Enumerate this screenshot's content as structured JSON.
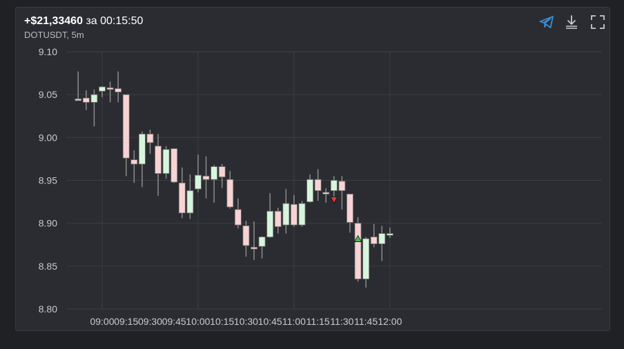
{
  "header": {
    "pnl": "+$21,33460",
    "duration_prefix": "за",
    "duration": "00:15:50",
    "symbol_timeframe": "DOTUSDT, 5m"
  },
  "toolbar": {
    "icons": [
      "telegram-icon",
      "download-icon",
      "fullscreen-icon"
    ],
    "accent": "#3a8fd6"
  },
  "chart_data": {
    "type": "candlestick",
    "symbol": "DOTUSDT",
    "interval": "5m",
    "ylim": [
      8.8,
      9.1
    ],
    "yticks": [
      "9.10",
      "9.05",
      "9.00",
      "8.95",
      "8.90",
      "8.85",
      "8.80"
    ],
    "xticks": [
      "09:00",
      "09:15",
      "09:30",
      "09:45",
      "10:00",
      "10:15",
      "10:30",
      "10:45",
      "11:00",
      "11:15",
      "11:30",
      "11:45",
      "12:00"
    ],
    "grid": true,
    "colors": {
      "up": "#d7f5dc",
      "down": "#f8d3d3",
      "wick": "#8c8c8c",
      "grid": "#3c3e44"
    },
    "candles": [
      {
        "t": "08:45",
        "o": 9.045,
        "h": 9.077,
        "l": 9.043,
        "c": 9.044
      },
      {
        "t": "08:50",
        "o": 9.046,
        "h": 9.055,
        "l": 9.032,
        "c": 9.041
      },
      {
        "t": "08:55",
        "o": 9.041,
        "h": 9.056,
        "l": 9.013,
        "c": 9.05
      },
      {
        "t": "09:00",
        "o": 9.054,
        "h": 9.06,
        "l": 9.047,
        "c": 9.059
      },
      {
        "t": "09:05",
        "o": 9.058,
        "h": 9.065,
        "l": 9.041,
        "c": 9.056
      },
      {
        "t": "09:10",
        "o": 9.057,
        "h": 9.077,
        "l": 9.041,
        "c": 9.053
      },
      {
        "t": "09:15",
        "o": 9.05,
        "h": 9.05,
        "l": 8.955,
        "c": 8.976
      },
      {
        "t": "09:20",
        "o": 8.974,
        "h": 8.985,
        "l": 8.947,
        "c": 8.969
      },
      {
        "t": "09:25",
        "o": 8.969,
        "h": 9.007,
        "l": 8.942,
        "c": 9.004
      },
      {
        "t": "09:30",
        "o": 9.004,
        "h": 9.009,
        "l": 8.981,
        "c": 8.994
      },
      {
        "t": "09:35",
        "o": 8.99,
        "h": 9.004,
        "l": 8.932,
        "c": 8.958
      },
      {
        "t": "09:40",
        "o": 8.958,
        "h": 8.99,
        "l": 8.952,
        "c": 8.986
      },
      {
        "t": "09:45",
        "o": 8.987,
        "h": 8.987,
        "l": 8.947,
        "c": 8.948
      },
      {
        "t": "09:50",
        "o": 8.947,
        "h": 8.965,
        "l": 8.906,
        "c": 8.912
      },
      {
        "t": "09:55",
        "o": 8.912,
        "h": 8.957,
        "l": 8.905,
        "c": 8.938
      },
      {
        "t": "10:00",
        "o": 8.94,
        "h": 8.98,
        "l": 8.936,
        "c": 8.956
      },
      {
        "t": "10:05",
        "o": 8.955,
        "h": 8.978,
        "l": 8.929,
        "c": 8.951
      },
      {
        "t": "10:10",
        "o": 8.951,
        "h": 8.968,
        "l": 8.924,
        "c": 8.966
      },
      {
        "t": "10:15",
        "o": 8.966,
        "h": 8.969,
        "l": 8.941,
        "c": 8.954
      },
      {
        "t": "10:20",
        "o": 8.951,
        "h": 8.961,
        "l": 8.917,
        "c": 8.919
      },
      {
        "t": "10:25",
        "o": 8.916,
        "h": 8.929,
        "l": 8.894,
        "c": 8.898
      },
      {
        "t": "10:30",
        "o": 8.897,
        "h": 8.903,
        "l": 8.861,
        "c": 8.874
      },
      {
        "t": "10:35",
        "o": 8.872,
        "h": 8.902,
        "l": 8.857,
        "c": 8.871
      },
      {
        "t": "10:40",
        "o": 8.873,
        "h": 8.885,
        "l": 8.859,
        "c": 8.884
      },
      {
        "t": "10:45",
        "o": 8.884,
        "h": 8.935,
        "l": 8.883,
        "c": 8.914
      },
      {
        "t": "10:50",
        "o": 8.914,
        "h": 8.918,
        "l": 8.888,
        "c": 8.896
      },
      {
        "t": "10:55",
        "o": 8.898,
        "h": 8.94,
        "l": 8.888,
        "c": 8.923
      },
      {
        "t": "11:00",
        "o": 8.922,
        "h": 8.933,
        "l": 8.896,
        "c": 8.898
      },
      {
        "t": "11:05",
        "o": 8.898,
        "h": 8.926,
        "l": 8.896,
        "c": 8.923
      },
      {
        "t": "11:10",
        "o": 8.925,
        "h": 8.957,
        "l": 8.924,
        "c": 8.951
      },
      {
        "t": "11:15",
        "o": 8.951,
        "h": 8.963,
        "l": 8.926,
        "c": 8.938
      },
      {
        "t": "11:20",
        "o": 8.936,
        "h": 8.941,
        "l": 8.924,
        "c": 8.935
      },
      {
        "t": "11:25",
        "o": 8.938,
        "h": 8.955,
        "l": 8.929,
        "c": 8.95
      },
      {
        "t": "11:30",
        "o": 8.949,
        "h": 8.955,
        "l": 8.916,
        "c": 8.938
      },
      {
        "t": "11:35",
        "o": 8.934,
        "h": 8.934,
        "l": 8.889,
        "c": 8.901
      },
      {
        "t": "11:40",
        "o": 8.9,
        "h": 8.907,
        "l": 8.832,
        "c": 8.835
      },
      {
        "t": "11:45",
        "o": 8.835,
        "h": 8.884,
        "l": 8.825,
        "c": 8.882
      },
      {
        "t": "11:50",
        "o": 8.884,
        "h": 8.899,
        "l": 8.872,
        "c": 8.876
      },
      {
        "t": "11:55",
        "o": 8.876,
        "h": 8.897,
        "l": 8.856,
        "c": 8.888
      },
      {
        "t": "12:00",
        "o": 8.886,
        "h": 8.895,
        "l": 8.883,
        "c": 8.888
      }
    ],
    "markers": [
      {
        "name": "sell-marker",
        "t": "11:25",
        "price": 8.927,
        "shape": "triangle-down",
        "color": "#e53935"
      },
      {
        "name": "buy-marker",
        "t": "11:40",
        "price": 8.882,
        "shape": "triangle-up",
        "color": "#43c04a"
      }
    ]
  }
}
